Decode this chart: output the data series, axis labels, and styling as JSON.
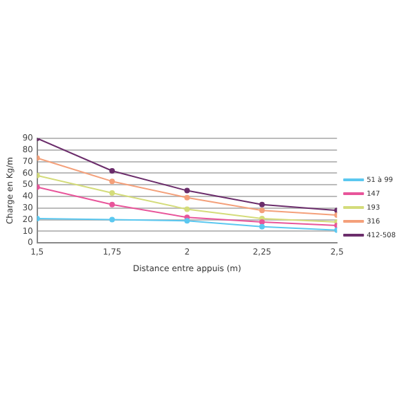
{
  "chart_data": {
    "type": "line",
    "xlabel": "Distance entre appuis (m)",
    "ylabel": "Charge en Kg/m",
    "x": [
      1.5,
      1.75,
      2,
      2.25,
      2.5
    ],
    "xlim": [
      1.5,
      2.5
    ],
    "xticks": [
      {
        "value": 1.5,
        "label": "1,5"
      },
      {
        "value": 1.75,
        "label": "1,75"
      },
      2,
      {
        "value": 2.25,
        "label": "2,25"
      },
      {
        "value": 2.5,
        "label": "2,5"
      }
    ],
    "ylim": [
      0,
      90
    ],
    "yticks": [
      0,
      10,
      20,
      30,
      40,
      50,
      60,
      70,
      80,
      90
    ],
    "grid": "y",
    "legend": "right",
    "marker": "circle",
    "line_style": "solid",
    "series": [
      {
        "name": "51 à 99",
        "color": "#5bc8f0",
        "values": [
          21,
          20,
          19,
          14,
          11
        ]
      },
      {
        "name": "147",
        "color": "#e8559a",
        "values": [
          48,
          33,
          22,
          18,
          15
        ]
      },
      {
        "name": "193",
        "color": "#d4dc7a",
        "values": [
          58,
          43,
          29,
          21,
          18
        ]
      },
      {
        "name": "316",
        "color": "#f4a07a",
        "values": [
          73,
          53,
          39,
          28,
          24
        ]
      },
      {
        "name": "412-508",
        "color": "#6b2d6b",
        "values": [
          90,
          62,
          45,
          33,
          28
        ]
      }
    ]
  }
}
